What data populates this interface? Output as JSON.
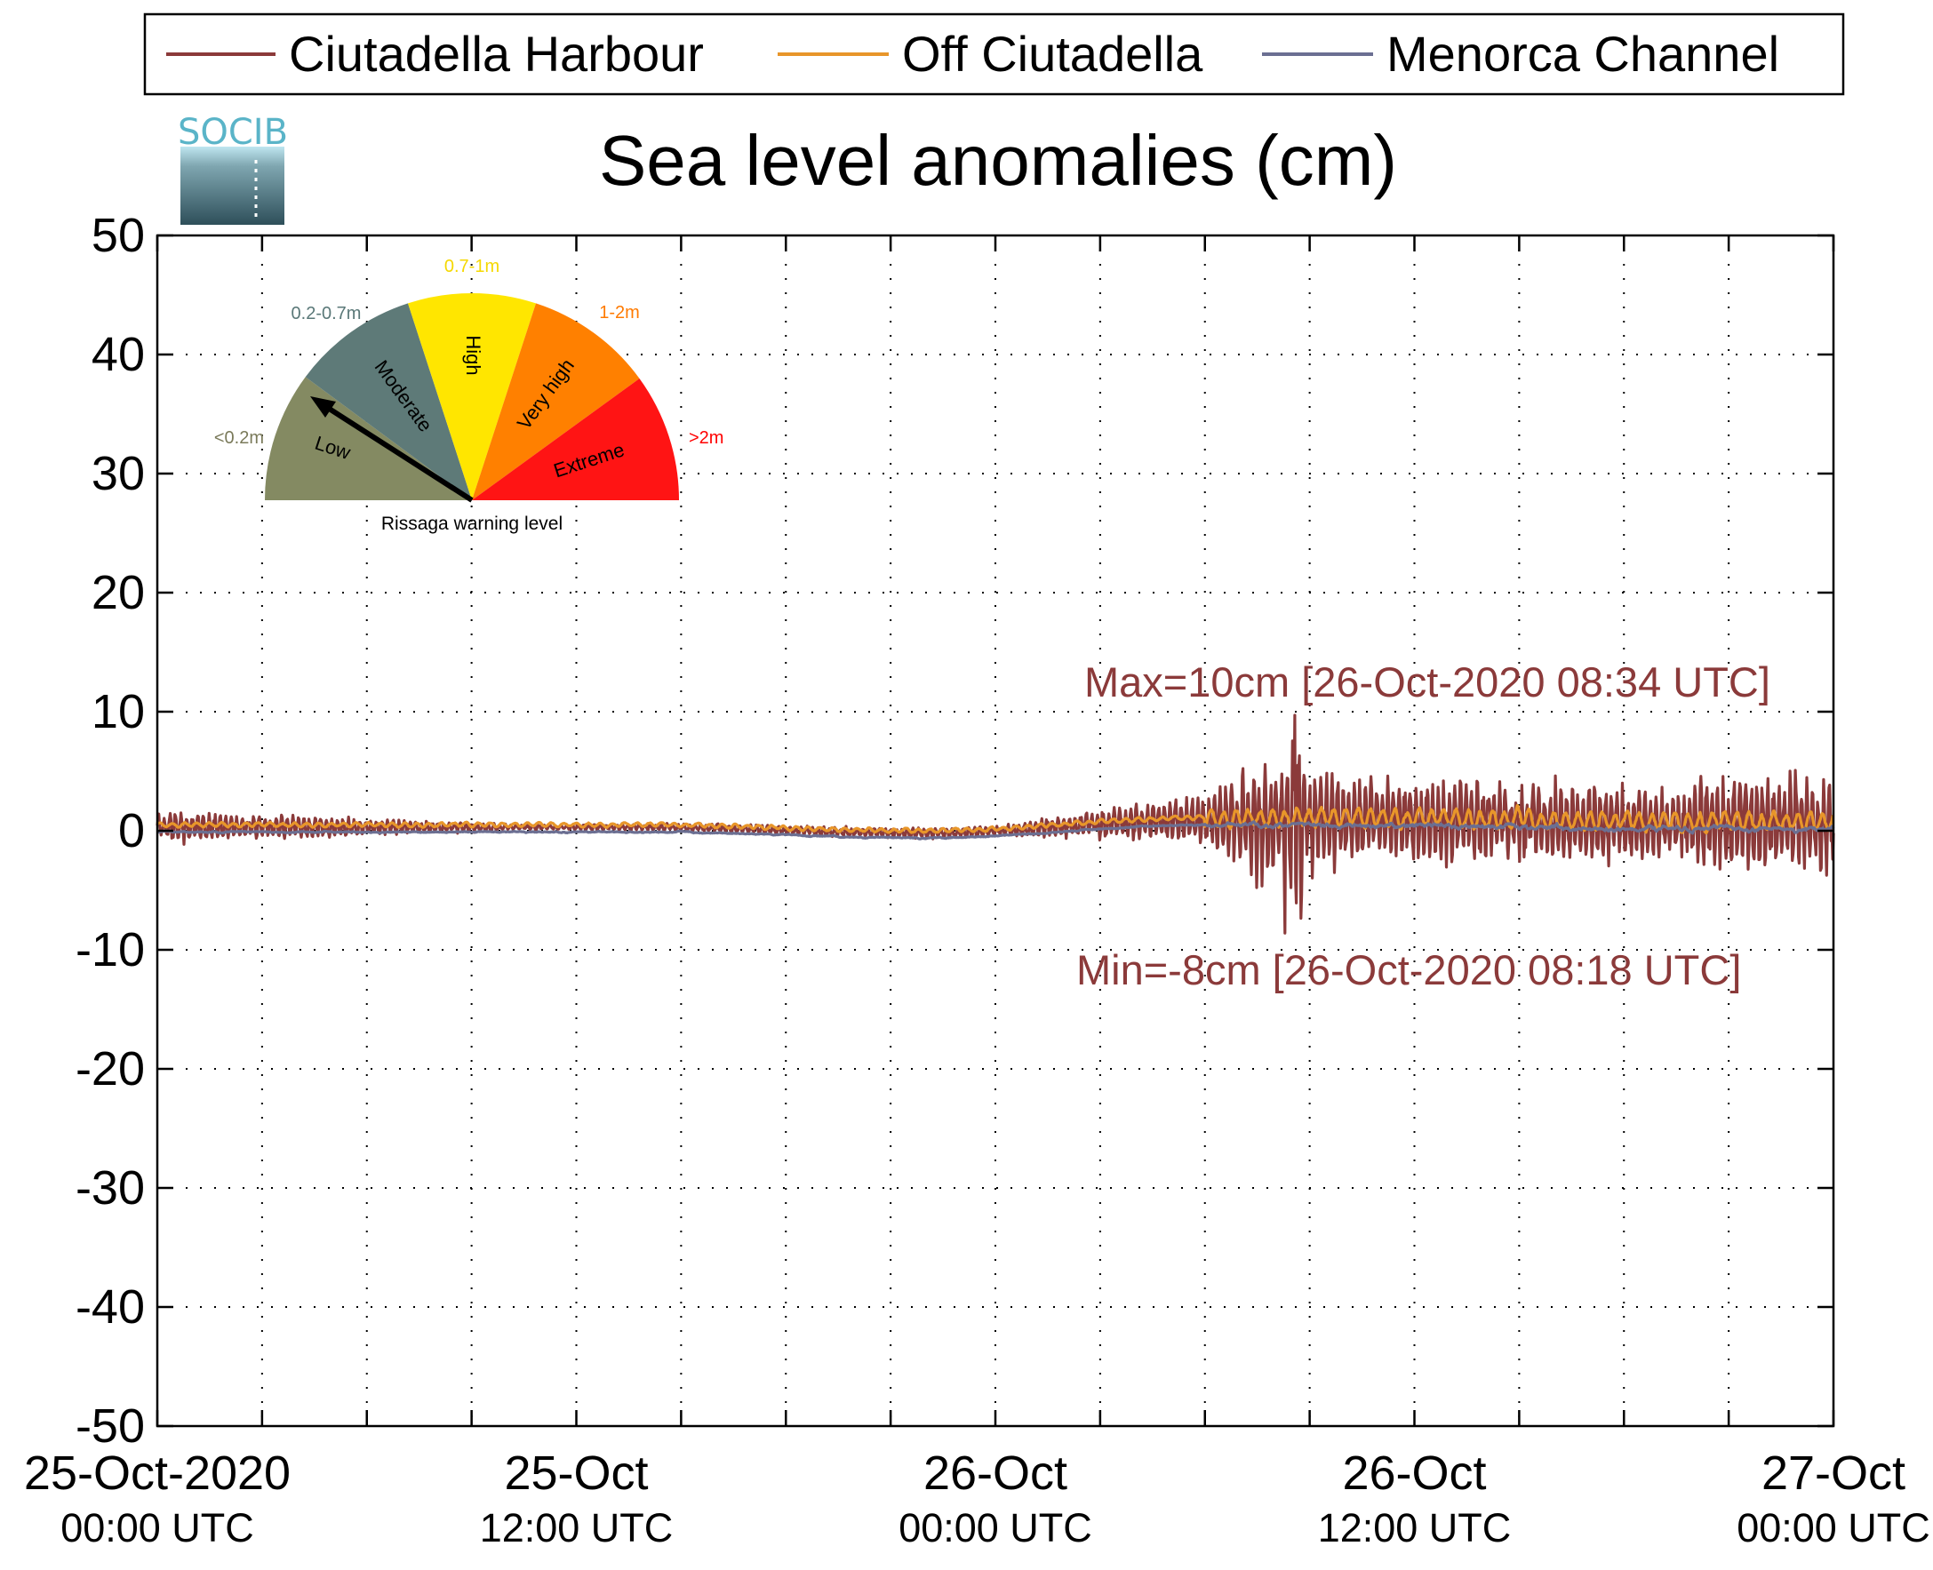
{
  "chart_data": {
    "type": "line",
    "title": "Sea level anomalies (cm)",
    "logo_text": "SOCIB",
    "ylim": [
      -50,
      50
    ],
    "y_ticks": [
      -50,
      -40,
      -30,
      -20,
      -10,
      0,
      10,
      20,
      30,
      40,
      50
    ],
    "y_tick_labels": [
      "-50",
      "-40",
      "-30",
      "-20",
      "-10",
      "0",
      "10",
      "20",
      "30",
      "40",
      "50"
    ],
    "x_range_hours": [
      0,
      48
    ],
    "x_tick_labels": [
      {
        "line1": "25-Oct-2020",
        "line2": "00:00 UTC"
      },
      {
        "line1": "25-Oct",
        "line2": "12:00 UTC"
      },
      {
        "line1": "26-Oct",
        "line2": "00:00 UTC"
      },
      {
        "line1": "26-Oct",
        "line2": "12:00 UTC"
      },
      {
        "line1": "27-Oct",
        "line2": "00:00 UTC"
      }
    ],
    "grid": true,
    "legend_position": "top",
    "series": [
      {
        "name": "Ciutadella Harbour",
        "color": "#8b3a3a"
      },
      {
        "name": "Off Ciutadella",
        "color": "#e8962a"
      },
      {
        "name": "Menorca Channel",
        "color": "#6b6f92"
      }
    ],
    "annotations": {
      "max_label": "Max=10cm [26-Oct-2020 08:34 UTC]",
      "min_label": "Min=-8cm [26-Oct-2020 08:18 UTC]",
      "max_value": 10,
      "min_value": -8,
      "color": "#8b3a3a"
    },
    "gauge": {
      "title": "Rissaga warning level",
      "needle_level": "Low",
      "needle_color": "#000000",
      "sectors": [
        {
          "name": "Low",
          "range": "<0.2m",
          "color": "#848a62",
          "range_color": "#7a7a5a"
        },
        {
          "name": "Moderate",
          "range": "0.2-0.7m",
          "color": "#5e7a78",
          "range_color": "#5a7878"
        },
        {
          "name": "High",
          "range": "0.7-1m",
          "color": "#ffe600",
          "range_color": "#f5d800"
        },
        {
          "name": "Very high",
          "range": "1-2m",
          "color": "#ff8000",
          "range_color": "#ff7a00"
        },
        {
          "name": "Extreme",
          "range": ">2m",
          "color": "#ff1414",
          "range_color": "#ff0000"
        }
      ]
    }
  }
}
